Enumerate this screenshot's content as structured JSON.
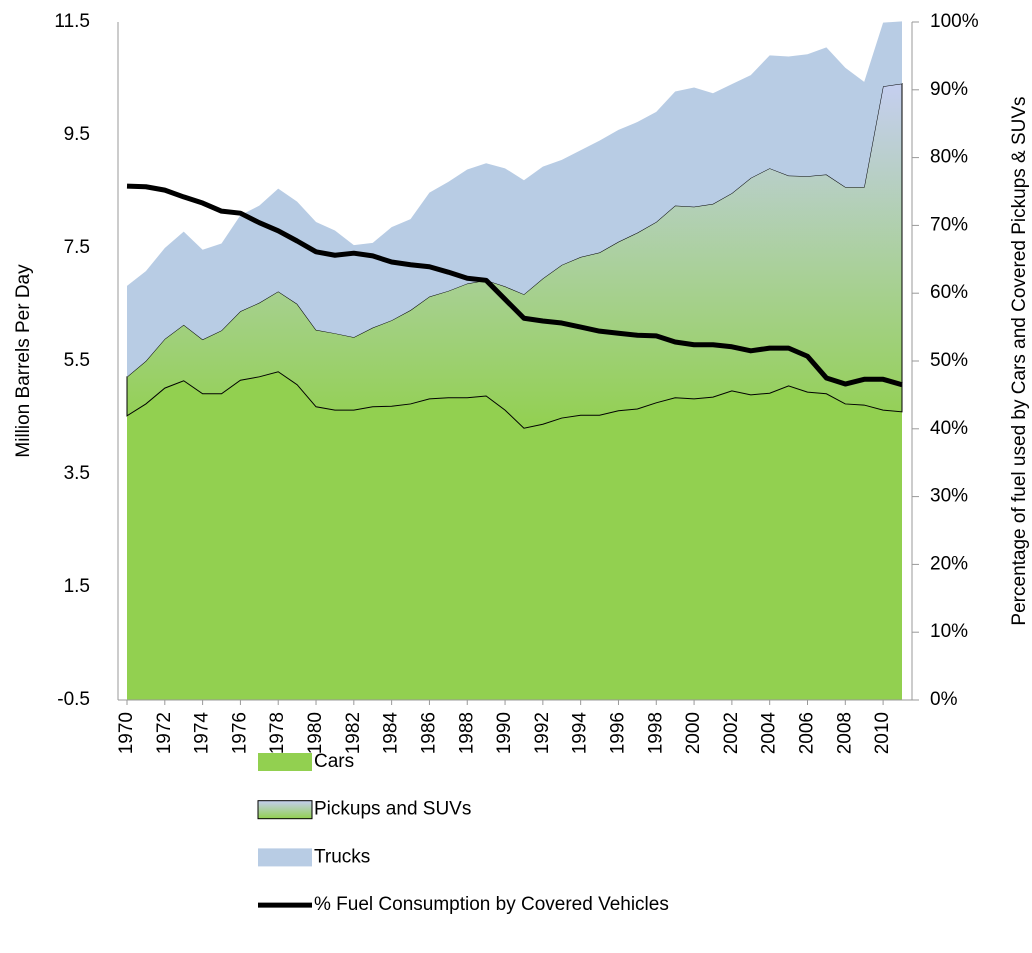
{
  "chart_data": {
    "type": "area",
    "y_label": "Million Barrels Per Day",
    "y2_label": "Percentage of fuel used by Cars and Covered Pickups & SUVs",
    "x": [
      1970,
      1971,
      1972,
      1973,
      1974,
      1975,
      1976,
      1977,
      1978,
      1979,
      1980,
      1981,
      1982,
      1983,
      1984,
      1985,
      1986,
      1987,
      1988,
      1989,
      1990,
      1991,
      1992,
      1993,
      1994,
      1995,
      1996,
      1997,
      1998,
      1999,
      2000,
      2001,
      2002,
      2003,
      2004,
      2005,
      2006,
      2007,
      2008,
      2009,
      2010,
      2011
    ],
    "xlim": [
      1970,
      2011
    ],
    "xticks": [
      1970,
      1972,
      1974,
      1976,
      1978,
      1980,
      1982,
      1984,
      1986,
      1988,
      1990,
      1992,
      1994,
      1996,
      1998,
      2000,
      2002,
      2004,
      2006,
      2008,
      2010
    ],
    "ylim": [
      -0.5,
      11.5
    ],
    "yticks": [
      -0.5,
      1.5,
      3.5,
      5.5,
      7.5,
      9.5,
      11.5
    ],
    "y2lim": [
      0,
      100
    ],
    "y2ticks": [
      {
        "value": 0,
        "label": "0%"
      },
      {
        "value": 10,
        "label": "10%"
      },
      {
        "value": 20,
        "label": "20%"
      },
      {
        "value": 30,
        "label": "30%"
      },
      {
        "value": 40,
        "label": "40%"
      },
      {
        "value": 50,
        "label": "50%"
      },
      {
        "value": 60,
        "label": "60%"
      },
      {
        "value": 70,
        "label": "70%"
      },
      {
        "value": 80,
        "label": "80%"
      },
      {
        "value": 90,
        "label": "90%"
      },
      {
        "value": 100,
        "label": "100%"
      }
    ],
    "stacked": true,
    "series": [
      {
        "name": "Cars",
        "color": "#92d050",
        "values": [
          4.53,
          4.74,
          5.02,
          5.15,
          4.92,
          4.92,
          5.16,
          5.22,
          5.31,
          5.08,
          4.69,
          4.63,
          4.63,
          4.69,
          4.7,
          4.74,
          4.83,
          4.85,
          4.85,
          4.88,
          4.63,
          4.31,
          4.38,
          4.49,
          4.54,
          4.54,
          4.62,
          4.65,
          4.76,
          4.85,
          4.83,
          4.86,
          4.97,
          4.9,
          4.93,
          5.06,
          4.95,
          4.92,
          4.74,
          4.72,
          4.63,
          4.6
        ]
      },
      {
        "name": "Pickups and SUVs",
        "color": "#c5cff0",
        "values": [
          0.69,
          0.76,
          0.87,
          0.99,
          0.96,
          1.12,
          1.22,
          1.31,
          1.42,
          1.43,
          1.36,
          1.36,
          1.29,
          1.4,
          1.52,
          1.66,
          1.81,
          1.89,
          2.02,
          2.05,
          2.19,
          2.37,
          2.58,
          2.71,
          2.8,
          2.88,
          2.99,
          3.12,
          3.2,
          3.4,
          3.4,
          3.42,
          3.5,
          3.84,
          3.98,
          3.72,
          3.82,
          3.88,
          3.84,
          3.86,
          5.73,
          5.81
        ]
      },
      {
        "name": "Trucks",
        "color": "#b8cce4",
        "values": [
          1.61,
          1.59,
          1.61,
          1.65,
          1.59,
          1.54,
          1.7,
          1.72,
          1.82,
          1.81,
          1.91,
          1.82,
          1.63,
          1.5,
          1.65,
          1.61,
          1.84,
          1.93,
          2.02,
          2.07,
          2.09,
          2.02,
          1.98,
          1.86,
          1.89,
          1.98,
          1.98,
          1.96,
          1.95,
          2.02,
          2.11,
          1.96,
          1.93,
          1.82,
          2.0,
          2.11,
          2.16,
          2.25,
          2.11,
          1.86,
          1.13,
          1.1
        ]
      },
      {
        "name": "% Fuel Consumption by Covered Vehicles",
        "color": "#000000",
        "axis": "y2",
        "type": "line",
        "values": [
          75.8,
          75.7,
          75.2,
          74.2,
          73.3,
          72.1,
          71.8,
          70.4,
          69.2,
          67.7,
          66.1,
          65.6,
          65.9,
          65.5,
          64.6,
          64.2,
          63.9,
          63.1,
          62.2,
          61.9,
          59.1,
          56.3,
          55.9,
          55.6,
          55.0,
          54.4,
          54.1,
          53.8,
          53.7,
          52.8,
          52.4,
          52.4,
          52.1,
          51.5,
          51.9,
          51.9,
          50.7,
          47.5,
          46.6,
          47.3,
          47.3,
          46.5
        ]
      }
    ]
  }
}
